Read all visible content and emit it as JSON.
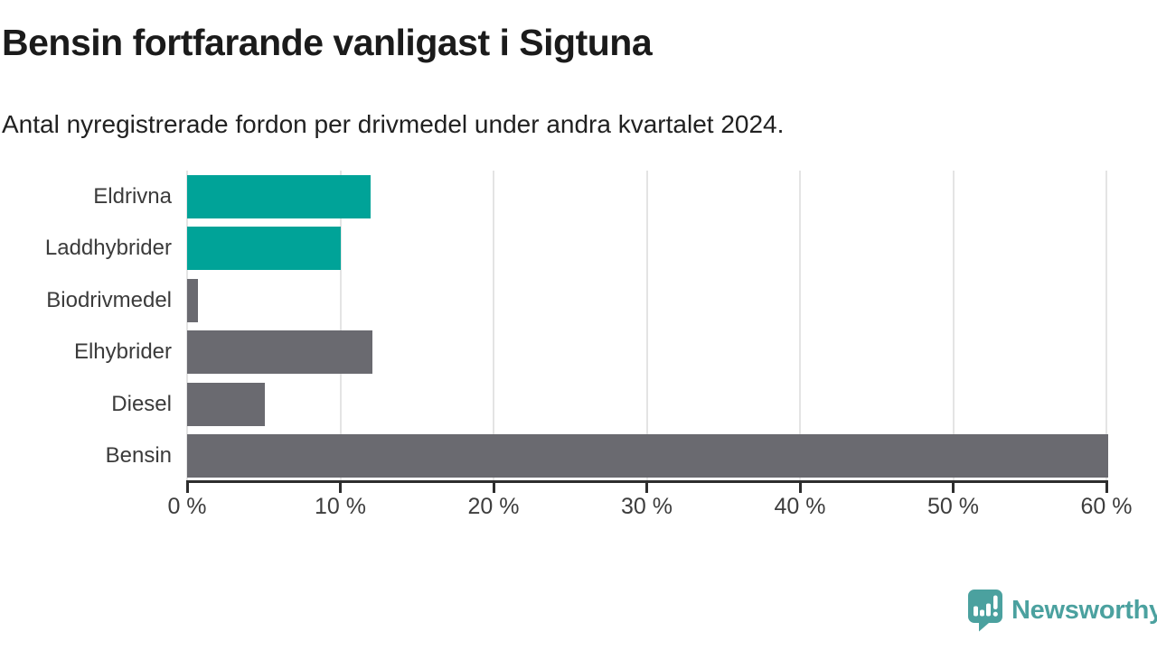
{
  "title": "Bensin fortfarande vanligast i Sigtuna",
  "subtitle": "Antal nyregistrerade fordon per drivmedel under andra kvartalet 2024.",
  "chart_data": {
    "type": "bar",
    "orientation": "horizontal",
    "title": "Bensin fortfarande vanligast i Sigtuna",
    "subtitle": "Antal nyregistrerade fordon per drivmedel under andra kvartalet 2024.",
    "categories": [
      "Eldrivna",
      "Laddhybrider",
      "Biodrivmedel",
      "Elhybrider",
      "Diesel",
      "Bensin"
    ],
    "values": [
      12,
      10,
      0.7,
      12.1,
      5.1,
      60.1
    ],
    "unit": "%",
    "bar_colors": [
      "#00a398",
      "#00a398",
      "#6a6a70",
      "#6a6a70",
      "#6a6a70",
      "#6a6a70"
    ],
    "xlabel": "",
    "ylabel": "",
    "xlim": [
      0,
      60
    ],
    "x_tick_values": [
      0,
      10,
      20,
      30,
      40,
      50,
      60
    ],
    "x_tick_labels": [
      "0 %",
      "10 %",
      "20 %",
      "30 %",
      "40 %",
      "50 %",
      "60 %"
    ],
    "grid": true,
    "legend": "none"
  },
  "colors": {
    "teal_bar": "#00a398",
    "gray_bar": "#6a6a70",
    "gridline": "#e4e4e4",
    "axis": "#2d2d2d",
    "logo_teal": "#4ba19f"
  },
  "branding": {
    "logo_text": "Newsworthy",
    "logo_icon": "speech-bubble-bar-chart-exclamation"
  }
}
